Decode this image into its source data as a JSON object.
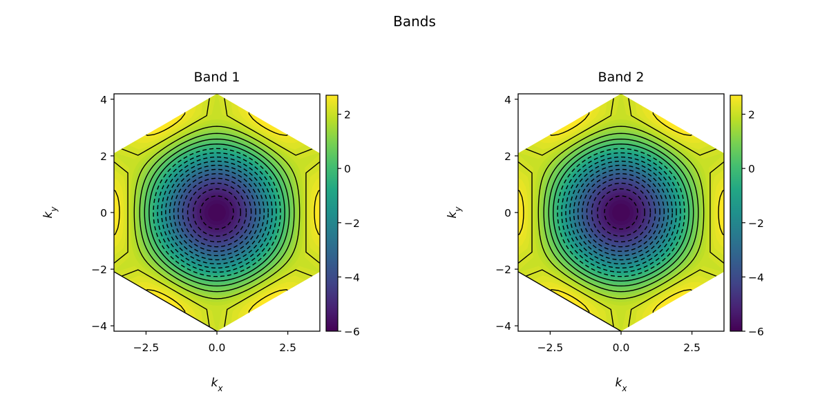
{
  "figure": {
    "title": "Bands"
  },
  "colors": {
    "colormap": "viridis",
    "contour_line": "#000000",
    "axis": "#000000",
    "background": "#ffffff"
  },
  "chart_data": [
    {
      "type": "heatmap",
      "title": "Band 1",
      "xlabel": "k_x",
      "ylabel": "k_y",
      "xlim": [
        -3.63,
        3.63
      ],
      "ylim": [
        -4.19,
        4.19
      ],
      "x_ticks": [
        -2.5,
        0.0,
        2.5
      ],
      "x_tick_labels": [
        "−2.5",
        "0.0",
        "2.5"
      ],
      "y_ticks": [
        -4,
        -2,
        0,
        2,
        4
      ],
      "y_tick_labels": [
        "−4",
        "−2",
        "0",
        "2",
        "4"
      ],
      "domain": "hexagon",
      "hexagon_vertices": [
        [
          0,
          4.19
        ],
        [
          3.63,
          2.09
        ],
        [
          3.63,
          -2.09
        ],
        [
          0,
          -4.19
        ],
        [
          -3.63,
          -2.09
        ],
        [
          -3.63,
          2.09
        ]
      ],
      "value_range": [
        -6,
        2.7
      ],
      "minimum": {
        "kx": 0,
        "ky": 0,
        "value": -6
      },
      "contour_levels": [
        -5.5,
        -5,
        -4.5,
        -4,
        -3.5,
        -3,
        -2.5,
        -2,
        -1.5,
        -1,
        -0.5,
        0,
        0.5,
        1,
        1.5,
        2,
        2.5
      ],
      "contour_style": "dashed for negative, solid for non-negative",
      "colorbar": {
        "range": [
          -6,
          2.7
        ],
        "ticks": [
          2,
          0,
          -2,
          -4,
          -6
        ],
        "tick_labels": [
          "2",
          "0",
          "−2",
          "−4",
          "−6"
        ]
      }
    },
    {
      "type": "heatmap",
      "title": "Band 2",
      "xlabel": "k_x",
      "ylabel": "k_y",
      "xlim": [
        -3.63,
        3.63
      ],
      "ylim": [
        -4.19,
        4.19
      ],
      "x_ticks": [
        -2.5,
        0.0,
        2.5
      ],
      "x_tick_labels": [
        "−2.5",
        "0.0",
        "2.5"
      ],
      "y_ticks": [
        -4,
        -2,
        0,
        2,
        4
      ],
      "y_tick_labels": [
        "−4",
        "−2",
        "0",
        "2",
        "4"
      ],
      "domain": "hexagon",
      "hexagon_vertices": [
        [
          0,
          4.19
        ],
        [
          3.63,
          2.09
        ],
        [
          3.63,
          -2.09
        ],
        [
          0,
          -4.19
        ],
        [
          -3.63,
          -2.09
        ],
        [
          -3.63,
          2.09
        ]
      ],
      "value_range": [
        -6,
        2.7
      ],
      "minimum": {
        "kx": 0,
        "ky": 0,
        "value": -6
      },
      "contour_levels": [
        -5.5,
        -5,
        -4.5,
        -4,
        -3.5,
        -3,
        -2.5,
        -2,
        -1.5,
        -1,
        -0.5,
        0,
        0.5,
        1,
        1.5,
        2,
        2.5
      ],
      "contour_style": "dashed for negative, solid for non-negative",
      "colorbar": {
        "range": [
          -6,
          2.7
        ],
        "ticks": [
          2,
          0,
          -2,
          -4,
          -6
        ],
        "tick_labels": [
          "2",
          "0",
          "−2",
          "−4",
          "−6"
        ]
      }
    }
  ]
}
